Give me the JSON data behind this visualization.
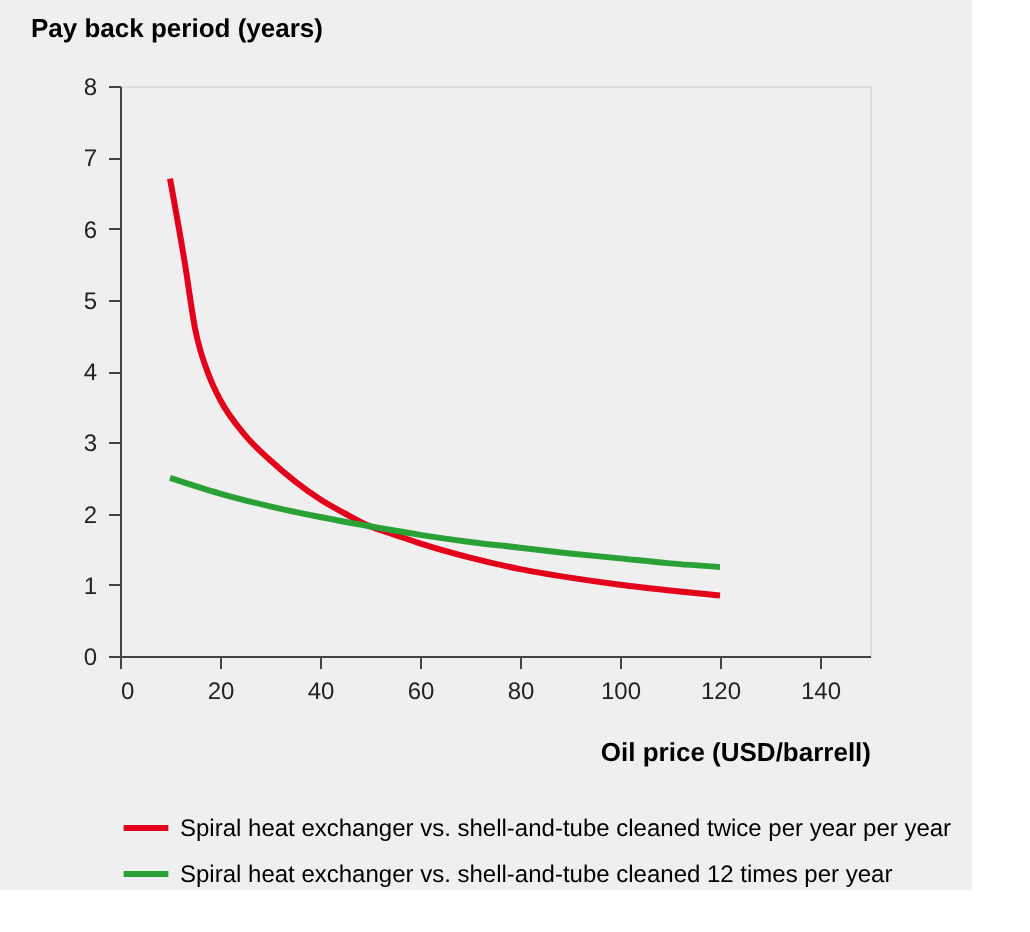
{
  "chart_data": {
    "type": "line",
    "ylabel": "Pay back period (years)",
    "xlabel": "Oil price (USD/barrell)",
    "xlim": [
      0,
      150
    ],
    "xticks": [
      0,
      20,
      40,
      60,
      80,
      100,
      120,
      140
    ],
    "ylim": [
      0,
      8
    ],
    "yticks": [
      0,
      1,
      2,
      3,
      4,
      5,
      6,
      7,
      8
    ],
    "grid": false,
    "legend": "bottom",
    "line_style": "solid",
    "marker": "none",
    "series": [
      {
        "name": "Spiral heat exchanger vs. shell-and-tube cleaned twice per year per year",
        "color": "#e3001b",
        "x": [
          10,
          13,
          15,
          18,
          20,
          25,
          30,
          35,
          40,
          45,
          50,
          55,
          60,
          70,
          80,
          90,
          100,
          110,
          120
        ],
        "values": [
          6.7,
          5.5,
          4.6,
          3.9,
          3.6,
          3.1,
          2.75,
          2.45,
          2.2,
          2.0,
          1.82,
          1.7,
          1.58,
          1.38,
          1.22,
          1.1,
          1.0,
          0.92,
          0.85
        ]
      },
      {
        "name": "Spiral heat exchanger vs. shell-and-tube cleaned 12 times per year",
        "color": "#2aa136",
        "x": [
          10,
          20,
          30,
          40,
          50,
          60,
          70,
          80,
          90,
          100,
          110,
          120
        ],
        "values": [
          2.5,
          2.28,
          2.1,
          1.95,
          1.82,
          1.7,
          1.6,
          1.52,
          1.44,
          1.37,
          1.3,
          1.25
        ]
      }
    ]
  }
}
